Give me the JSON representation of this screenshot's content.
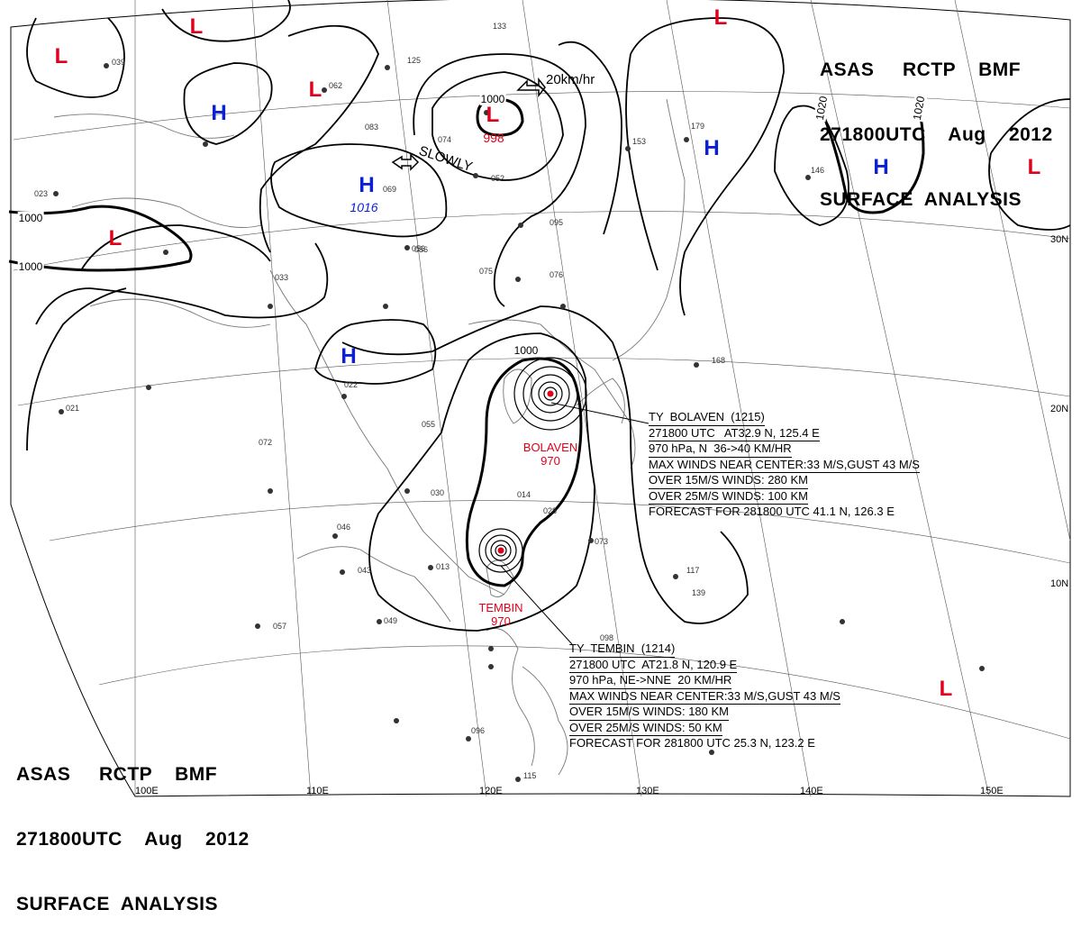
{
  "header_top": {
    "line1": "ASAS     RCTP    BMF",
    "line2": "271800UTC    Aug    2012",
    "line3": "SURFACE  ANALYSIS"
  },
  "header_bottom": {
    "line1": "ASAS     RCTP    BMF",
    "line2": "271800UTC    Aug    2012",
    "line3": "SURFACE  ANALYSIS"
  },
  "pressure_systems": [
    {
      "type": "L",
      "label": "L",
      "value": ""
    },
    {
      "type": "L",
      "label": "L",
      "value": ""
    },
    {
      "type": "L",
      "label": "L",
      "value": "998"
    },
    {
      "type": "L",
      "label": "L",
      "value": ""
    },
    {
      "type": "L",
      "label": "L",
      "value": ""
    },
    {
      "type": "L",
      "label": "L",
      "value": ""
    },
    {
      "type": "L",
      "label": "L",
      "value": ""
    },
    {
      "type": "L",
      "label": "L",
      "value": ""
    },
    {
      "type": "H",
      "label": "H",
      "value": ""
    },
    {
      "type": "H",
      "label": "H",
      "value": "1016"
    },
    {
      "type": "H",
      "label": "H",
      "value": ""
    },
    {
      "type": "H",
      "label": "H",
      "value": ""
    },
    {
      "type": "H",
      "label": "H",
      "value": ""
    }
  ],
  "isobar_labels": [
    "1000",
    "1000",
    "1000",
    "1000",
    "1020",
    "1020"
  ],
  "motions": {
    "low_north": "20km/hr",
    "high_west": "SLOWLY"
  },
  "typhoons": {
    "bolaven": {
      "name": "BOLAVEN",
      "pressure": "970",
      "info": [
        "TY  BOLAVEN  (1215)",
        "271800 UTC   AT32.9 N, 125.4 E",
        "970 hPa, N  36->40 KM/HR",
        "MAX WINDS NEAR CENTER:33 M/S,GUST 43 M/S",
        "OVER 15M/S WINDS: 280 KM",
        "OVER 25M/S WINDS: 100 KM",
        "FORECAST FOR 281800 UTC 41.1 N, 126.3 E"
      ]
    },
    "tembin": {
      "name": "TEMBIN",
      "pressure": "970",
      "info": [
        "TY  TEMBIN  (1214)",
        "271800 UTC  AT21.8 N, 120.9 E",
        "970 hPa, NE->NNE  20 KM/HR",
        "MAX WINDS NEAR CENTER:33 M/S,GUST 43 M/S",
        "OVER 15M/S WINDS: 180 KM",
        "OVER 25M/S WINDS: 50 KM",
        "FORECAST FOR 281800 UTC 25.3 N, 123.2 E"
      ]
    }
  },
  "latitude_labels": [
    "30N",
    "20N",
    "10N"
  ],
  "longitude_labels": [
    "100E",
    "110E",
    "120E",
    "130E",
    "140E",
    "150E"
  ],
  "colors": {
    "low": "#e0001b",
    "high": "#0a1fd6",
    "line": "#000000",
    "coast": "#777777"
  },
  "station_values": [
    "039",
    "062",
    "083",
    "125",
    "133",
    "074",
    "052",
    "095",
    "076",
    "056",
    "075",
    "022",
    "030",
    "046",
    "043",
    "013",
    "049",
    "057",
    "096",
    "098",
    "115",
    "153",
    "179",
    "146",
    "168",
    "117",
    "139",
    "073",
    "014",
    "028",
    "021",
    "033",
    "023",
    "069",
    "056",
    "055",
    "072"
  ]
}
